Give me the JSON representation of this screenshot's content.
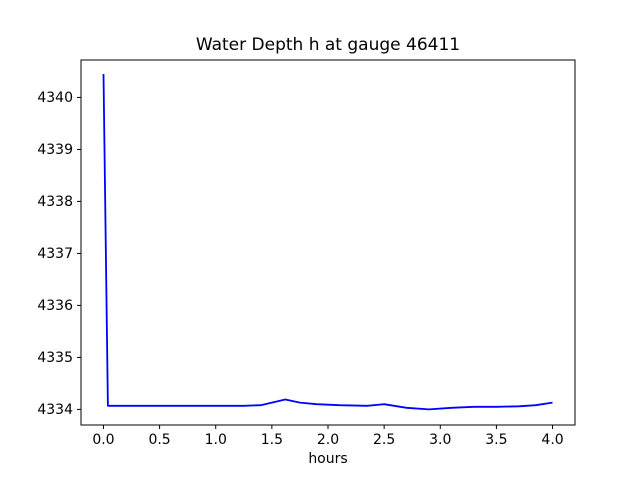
{
  "chart_data": {
    "type": "line",
    "title": "Water Depth h at gauge 46411",
    "xlabel": "hours",
    "ylabel": "",
    "xlim": [
      -0.2,
      4.2
    ],
    "ylim": [
      4333.7,
      4340.72
    ],
    "x_ticks": [
      0.0,
      0.5,
      1.0,
      1.5,
      2.0,
      2.5,
      3.0,
      3.5,
      4.0
    ],
    "x_tick_labels": [
      "0.0",
      "0.5",
      "1.0",
      "1.5",
      "2.0",
      "2.5",
      "3.0",
      "3.5",
      "4.0"
    ],
    "y_ticks": [
      4334,
      4335,
      4336,
      4337,
      4338,
      4339,
      4340
    ],
    "y_tick_labels": [
      "4334",
      "4335",
      "4336",
      "4337",
      "4338",
      "4339",
      "4340"
    ],
    "grid": false,
    "legend": "none",
    "line_color": "#0000ff",
    "axis_color": "#000000",
    "background_color": "#ffffff",
    "series": [
      {
        "name": "h",
        "x": [
          0.0,
          0.04,
          0.25,
          0.5,
          0.75,
          1.0,
          1.25,
          1.4,
          1.5,
          1.62,
          1.75,
          1.9,
          2.1,
          2.35,
          2.5,
          2.7,
          2.9,
          3.1,
          3.3,
          3.5,
          3.7,
          3.85,
          4.0
        ],
        "y": [
          4340.45,
          4334.07,
          4334.07,
          4334.07,
          4334.07,
          4334.07,
          4334.07,
          4334.08,
          4334.13,
          4334.19,
          4334.13,
          4334.1,
          4334.08,
          4334.07,
          4334.1,
          4334.03,
          4334.0,
          4334.03,
          4334.05,
          4334.05,
          4334.06,
          4334.08,
          4334.13
        ]
      }
    ]
  }
}
